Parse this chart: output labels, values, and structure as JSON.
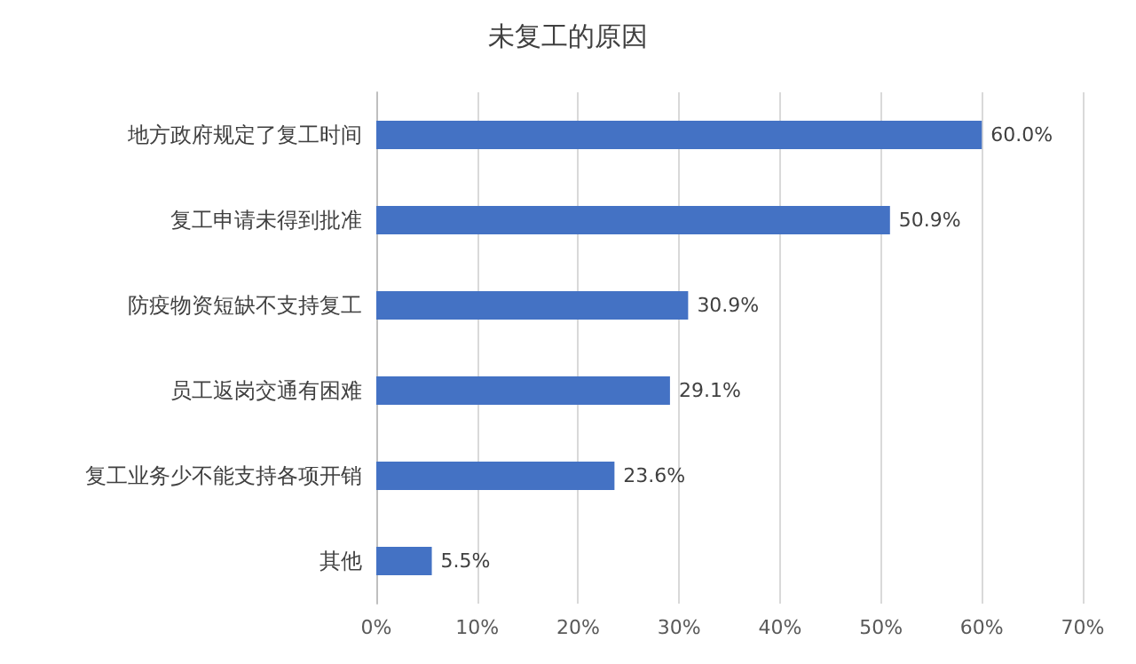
{
  "chart_data": {
    "type": "bar",
    "orientation": "horizontal",
    "title": "未复工的原因",
    "categories": [
      "地方政府规定了复工时间",
      "复工申请未得到批准",
      "防疫物资短缺不支持复工",
      "员工返岗交通有困难",
      "复工业务少不能支持各项开销",
      "其他"
    ],
    "values": [
      60.0,
      50.9,
      30.9,
      29.1,
      23.6,
      5.5
    ],
    "value_labels": [
      "60.0%",
      "50.9%",
      "30.9%",
      "29.1%",
      "23.6%",
      "5.5%"
    ],
    "color": "#4472c4",
    "xlim": [
      0,
      70
    ],
    "xticks": [
      {
        "value": 0,
        "label": "0%"
      },
      {
        "value": 10,
        "label": "10%"
      },
      {
        "value": 20,
        "label": "20%"
      },
      {
        "value": 30,
        "label": "30%"
      },
      {
        "value": 40,
        "label": "40%"
      },
      {
        "value": 50,
        "label": "50%"
      },
      {
        "value": 60,
        "label": "60%"
      },
      {
        "value": 70,
        "label": "70%"
      }
    ],
    "grid": "x"
  }
}
